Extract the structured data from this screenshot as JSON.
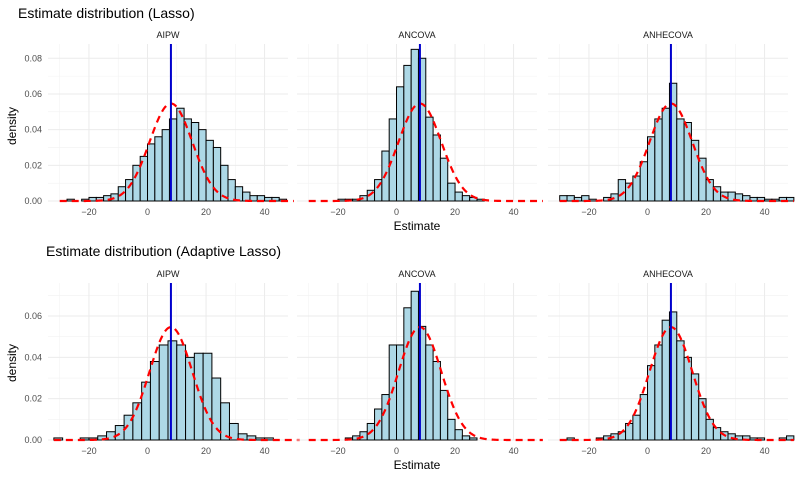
{
  "chart_data": [
    {
      "type": "bar",
      "title": "Estimate distribution (Lasso)",
      "xlabel": "Estimate",
      "ylabel": "density",
      "panels": [
        {
          "name": "AIPW",
          "xlim": [
            -34,
            48
          ],
          "ylim": [
            0,
            0.088
          ],
          "yticks": [
            0.0,
            0.02,
            0.04,
            0.06,
            0.08
          ],
          "xticks": [
            -20,
            0,
            20,
            40
          ],
          "bin_start": -30,
          "bin_width": 2.5,
          "values": [
            0.0,
            0.001,
            0.0,
            0.001,
            0.002,
            0.002,
            0.003,
            0.004,
            0.008,
            0.012,
            0.02,
            0.025,
            0.032,
            0.036,
            0.04,
            0.046,
            0.052,
            0.046,
            0.044,
            0.04,
            0.034,
            0.03,
            0.02,
            0.012,
            0.008,
            0.005,
            0.003,
            0.003,
            0.002,
            0.002,
            0.001,
            0.0
          ],
          "normal_mean": 8,
          "normal_sd": 7.3,
          "vline": 8
        },
        {
          "name": "ANCOVA",
          "xlim": [
            -34,
            48
          ],
          "ylim": [
            0,
            0.088
          ],
          "yticks": [
            0.0,
            0.02,
            0.04,
            0.06,
            0.08
          ],
          "xticks": [
            -20,
            0,
            20,
            40
          ],
          "bin_start": -30,
          "bin_width": 2.5,
          "values": [
            0.0,
            0.0,
            0.0,
            0.0,
            0.001,
            0.001,
            0.001,
            0.003,
            0.006,
            0.012,
            0.028,
            0.046,
            0.064,
            0.076,
            0.085,
            0.08,
            0.047,
            0.037,
            0.024,
            0.01,
            0.005,
            0.003,
            0.002,
            0.001,
            0.0,
            0.0,
            0.0,
            0.0,
            0.0,
            0.0,
            0.0,
            0.0
          ],
          "normal_mean": 8,
          "normal_sd": 7.3,
          "vline": 8
        },
        {
          "name": "ANHECOVA",
          "xlim": [
            -34,
            48
          ],
          "ylim": [
            0,
            0.088
          ],
          "yticks": [
            0.0,
            0.02,
            0.04,
            0.06,
            0.08
          ],
          "xticks": [
            -20,
            0,
            20,
            40
          ],
          "bin_start": -30,
          "bin_width": 2.5,
          "values": [
            0.003,
            0.003,
            0.002,
            0.003,
            0.001,
            0.0,
            0.002,
            0.004,
            0.012,
            0.01,
            0.014,
            0.022,
            0.036,
            0.046,
            0.052,
            0.066,
            0.046,
            0.044,
            0.034,
            0.024,
            0.012,
            0.008,
            0.005,
            0.005,
            0.004,
            0.003,
            0.002,
            0.002,
            0.001,
            0.001,
            0.002,
            0.002
          ],
          "normal_mean": 8,
          "normal_sd": 7.3,
          "vline": 8
        }
      ]
    },
    {
      "type": "bar",
      "title": "Estimate distribution (Adaptive Lasso)",
      "xlabel": "Estimate",
      "ylabel": "density",
      "panels": [
        {
          "name": "AIPW",
          "xlim": [
            -34,
            48
          ],
          "ylim": [
            0,
            0.076
          ],
          "yticks": [
            0.0,
            0.02,
            0.04,
            0.06
          ],
          "xticks": [
            -20,
            0,
            20,
            40
          ],
          "bin_start": -32,
          "bin_width": 3,
          "values": [
            0.001,
            0.0,
            0.0,
            0.001,
            0.001,
            0.002,
            0.004,
            0.007,
            0.012,
            0.018,
            0.028,
            0.038,
            0.046,
            0.048,
            0.046,
            0.04,
            0.042,
            0.042,
            0.03,
            0.018,
            0.008,
            0.003,
            0.002,
            0.001,
            0.001,
            0.0,
            0.0,
            0.0
          ],
          "normal_mean": 8,
          "normal_sd": 7.3,
          "vline": 8
        },
        {
          "name": "ANCOVA",
          "xlim": [
            -34,
            48
          ],
          "ylim": [
            0,
            0.076
          ],
          "yticks": [
            0.0,
            0.02,
            0.04,
            0.06
          ],
          "xticks": [
            -20,
            0,
            20,
            40
          ],
          "bin_start": -30,
          "bin_width": 2.5,
          "values": [
            0.0,
            0.0,
            0.0,
            0.0,
            0.0,
            0.001,
            0.002,
            0.004,
            0.008,
            0.015,
            0.022,
            0.046,
            0.046,
            0.064,
            0.072,
            0.055,
            0.046,
            0.038,
            0.024,
            0.01,
            0.005,
            0.002,
            0.001,
            0.0,
            0.0,
            0.0,
            0.0,
            0.0,
            0.0,
            0.0,
            0.0,
            0.0
          ],
          "normal_mean": 8,
          "normal_sd": 7.3,
          "vline": 8
        },
        {
          "name": "ANHECOVA",
          "xlim": [
            -34,
            48
          ],
          "ylim": [
            0,
            0.076
          ],
          "yticks": [
            0.0,
            0.02,
            0.04,
            0.06
          ],
          "xticks": [
            -20,
            0,
            20,
            40
          ],
          "bin_start": -30,
          "bin_width": 2.5,
          "values": [
            0.0,
            0.001,
            0.0,
            0.0,
            0.0,
            0.001,
            0.002,
            0.003,
            0.004,
            0.008,
            0.012,
            0.022,
            0.036,
            0.046,
            0.058,
            0.062,
            0.048,
            0.04,
            0.032,
            0.02,
            0.01,
            0.006,
            0.004,
            0.003,
            0.002,
            0.002,
            0.001,
            0.001,
            0.0,
            0.0,
            0.001,
            0.002
          ],
          "normal_mean": 8,
          "normal_sd": 7.3,
          "vline": 8
        }
      ]
    }
  ]
}
